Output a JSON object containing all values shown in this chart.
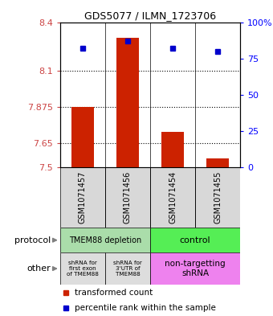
{
  "title": "GDS5077 / ILMN_1723706",
  "samples": [
    "GSM1071457",
    "GSM1071456",
    "GSM1071454",
    "GSM1071455"
  ],
  "red_values": [
    7.875,
    8.305,
    7.72,
    7.555
  ],
  "blue_values": [
    82,
    87,
    82,
    80
  ],
  "ylim_left": [
    7.5,
    8.4
  ],
  "ylim_right": [
    0,
    100
  ],
  "yticks_left": [
    7.5,
    7.65,
    7.875,
    8.1,
    8.4
  ],
  "ytick_labels_left": [
    "7.5",
    "7.65",
    "7.875",
    "8.1",
    "8.4"
  ],
  "yticks_right": [
    0,
    25,
    50,
    75,
    100
  ],
  "ytick_labels_right": [
    "0",
    "25",
    "50",
    "75",
    "100%"
  ],
  "hlines": [
    7.65,
    7.875,
    8.1
  ],
  "red_color": "#cc2200",
  "blue_color": "#0000cc",
  "bar_width": 0.5,
  "base_value": 7.5,
  "protocol_left_color": "#aaddaa",
  "protocol_right_color": "#55ee55",
  "other_gray_color": "#dddddd",
  "other_pink_color": "#ee82ee"
}
